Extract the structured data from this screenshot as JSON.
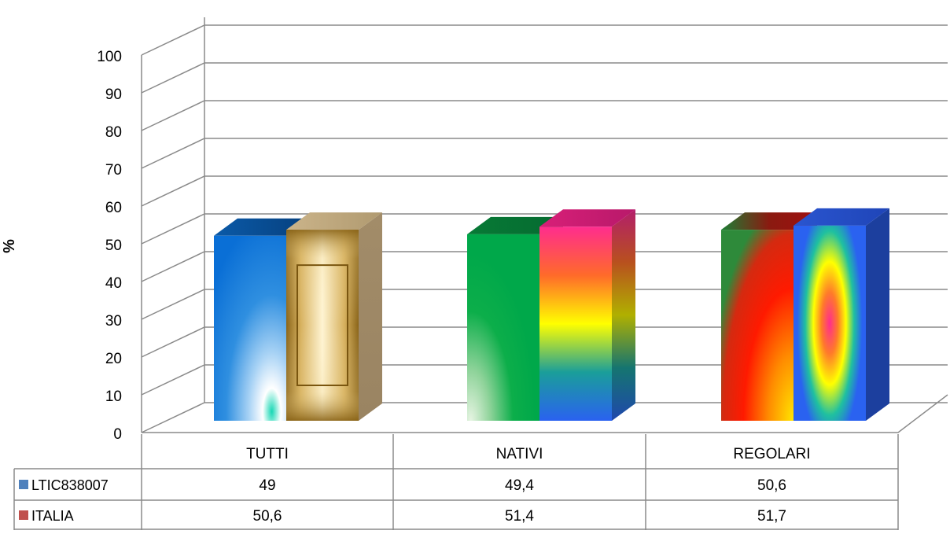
{
  "chart_data": {
    "type": "bar",
    "ylabel": "%",
    "ylim": [
      0,
      100
    ],
    "yticks": [
      0,
      10,
      20,
      30,
      40,
      50,
      60,
      70,
      80,
      90,
      100
    ],
    "categories": [
      "TUTTI",
      "NATIVI",
      "REGOLARI"
    ],
    "series": [
      {
        "name": "LTIC838007",
        "values": [
          "49",
          "49,4",
          "50,6"
        ],
        "numeric": [
          49,
          49.4,
          50.6
        ],
        "legend_color": "#4F81BD"
      },
      {
        "name": "ITALIA",
        "values": [
          "50,6",
          "51,4",
          "51,7"
        ],
        "numeric": [
          50.6,
          51.4,
          51.7
        ],
        "legend_color": "#C0504D"
      }
    ],
    "grid": true,
    "data_table": true
  }
}
